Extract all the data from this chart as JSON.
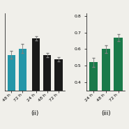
{
  "left_panel": {
    "teal_bars": {
      "labels": [
        "48 h",
        "72 h"
      ],
      "values": [
        0.72,
        0.75
      ],
      "errors": [
        0.018,
        0.022
      ],
      "color": "#2596A8"
    },
    "black_bars": {
      "labels": [
        "24 h",
        "48 h",
        "72 h"
      ],
      "values": [
        0.8,
        0.72,
        0.7
      ],
      "errors": [
        0.01,
        0.01,
        0.01
      ],
      "color": "#1a1a1a"
    },
    "label": "(ii)"
  },
  "right_panel": {
    "green_bars": {
      "labels": [
        "24 h",
        "48 h",
        "72 h"
      ],
      "values": [
        0.52,
        0.6,
        0.67
      ],
      "errors": [
        0.028,
        0.022,
        0.022
      ],
      "color": "#1A7A4A"
    },
    "label": "(iii)"
  },
  "ylim": [
    0.55,
    0.92
  ],
  "ylim_right": [
    0.35,
    0.82
  ],
  "background_color": "#f0efea",
  "bar_width": 0.7,
  "tick_fontsize": 4.5,
  "label_fontsize": 6.0,
  "yticks_left": [],
  "yticks_right": [
    0.4,
    0.5,
    0.6,
    0.7,
    0.8
  ]
}
